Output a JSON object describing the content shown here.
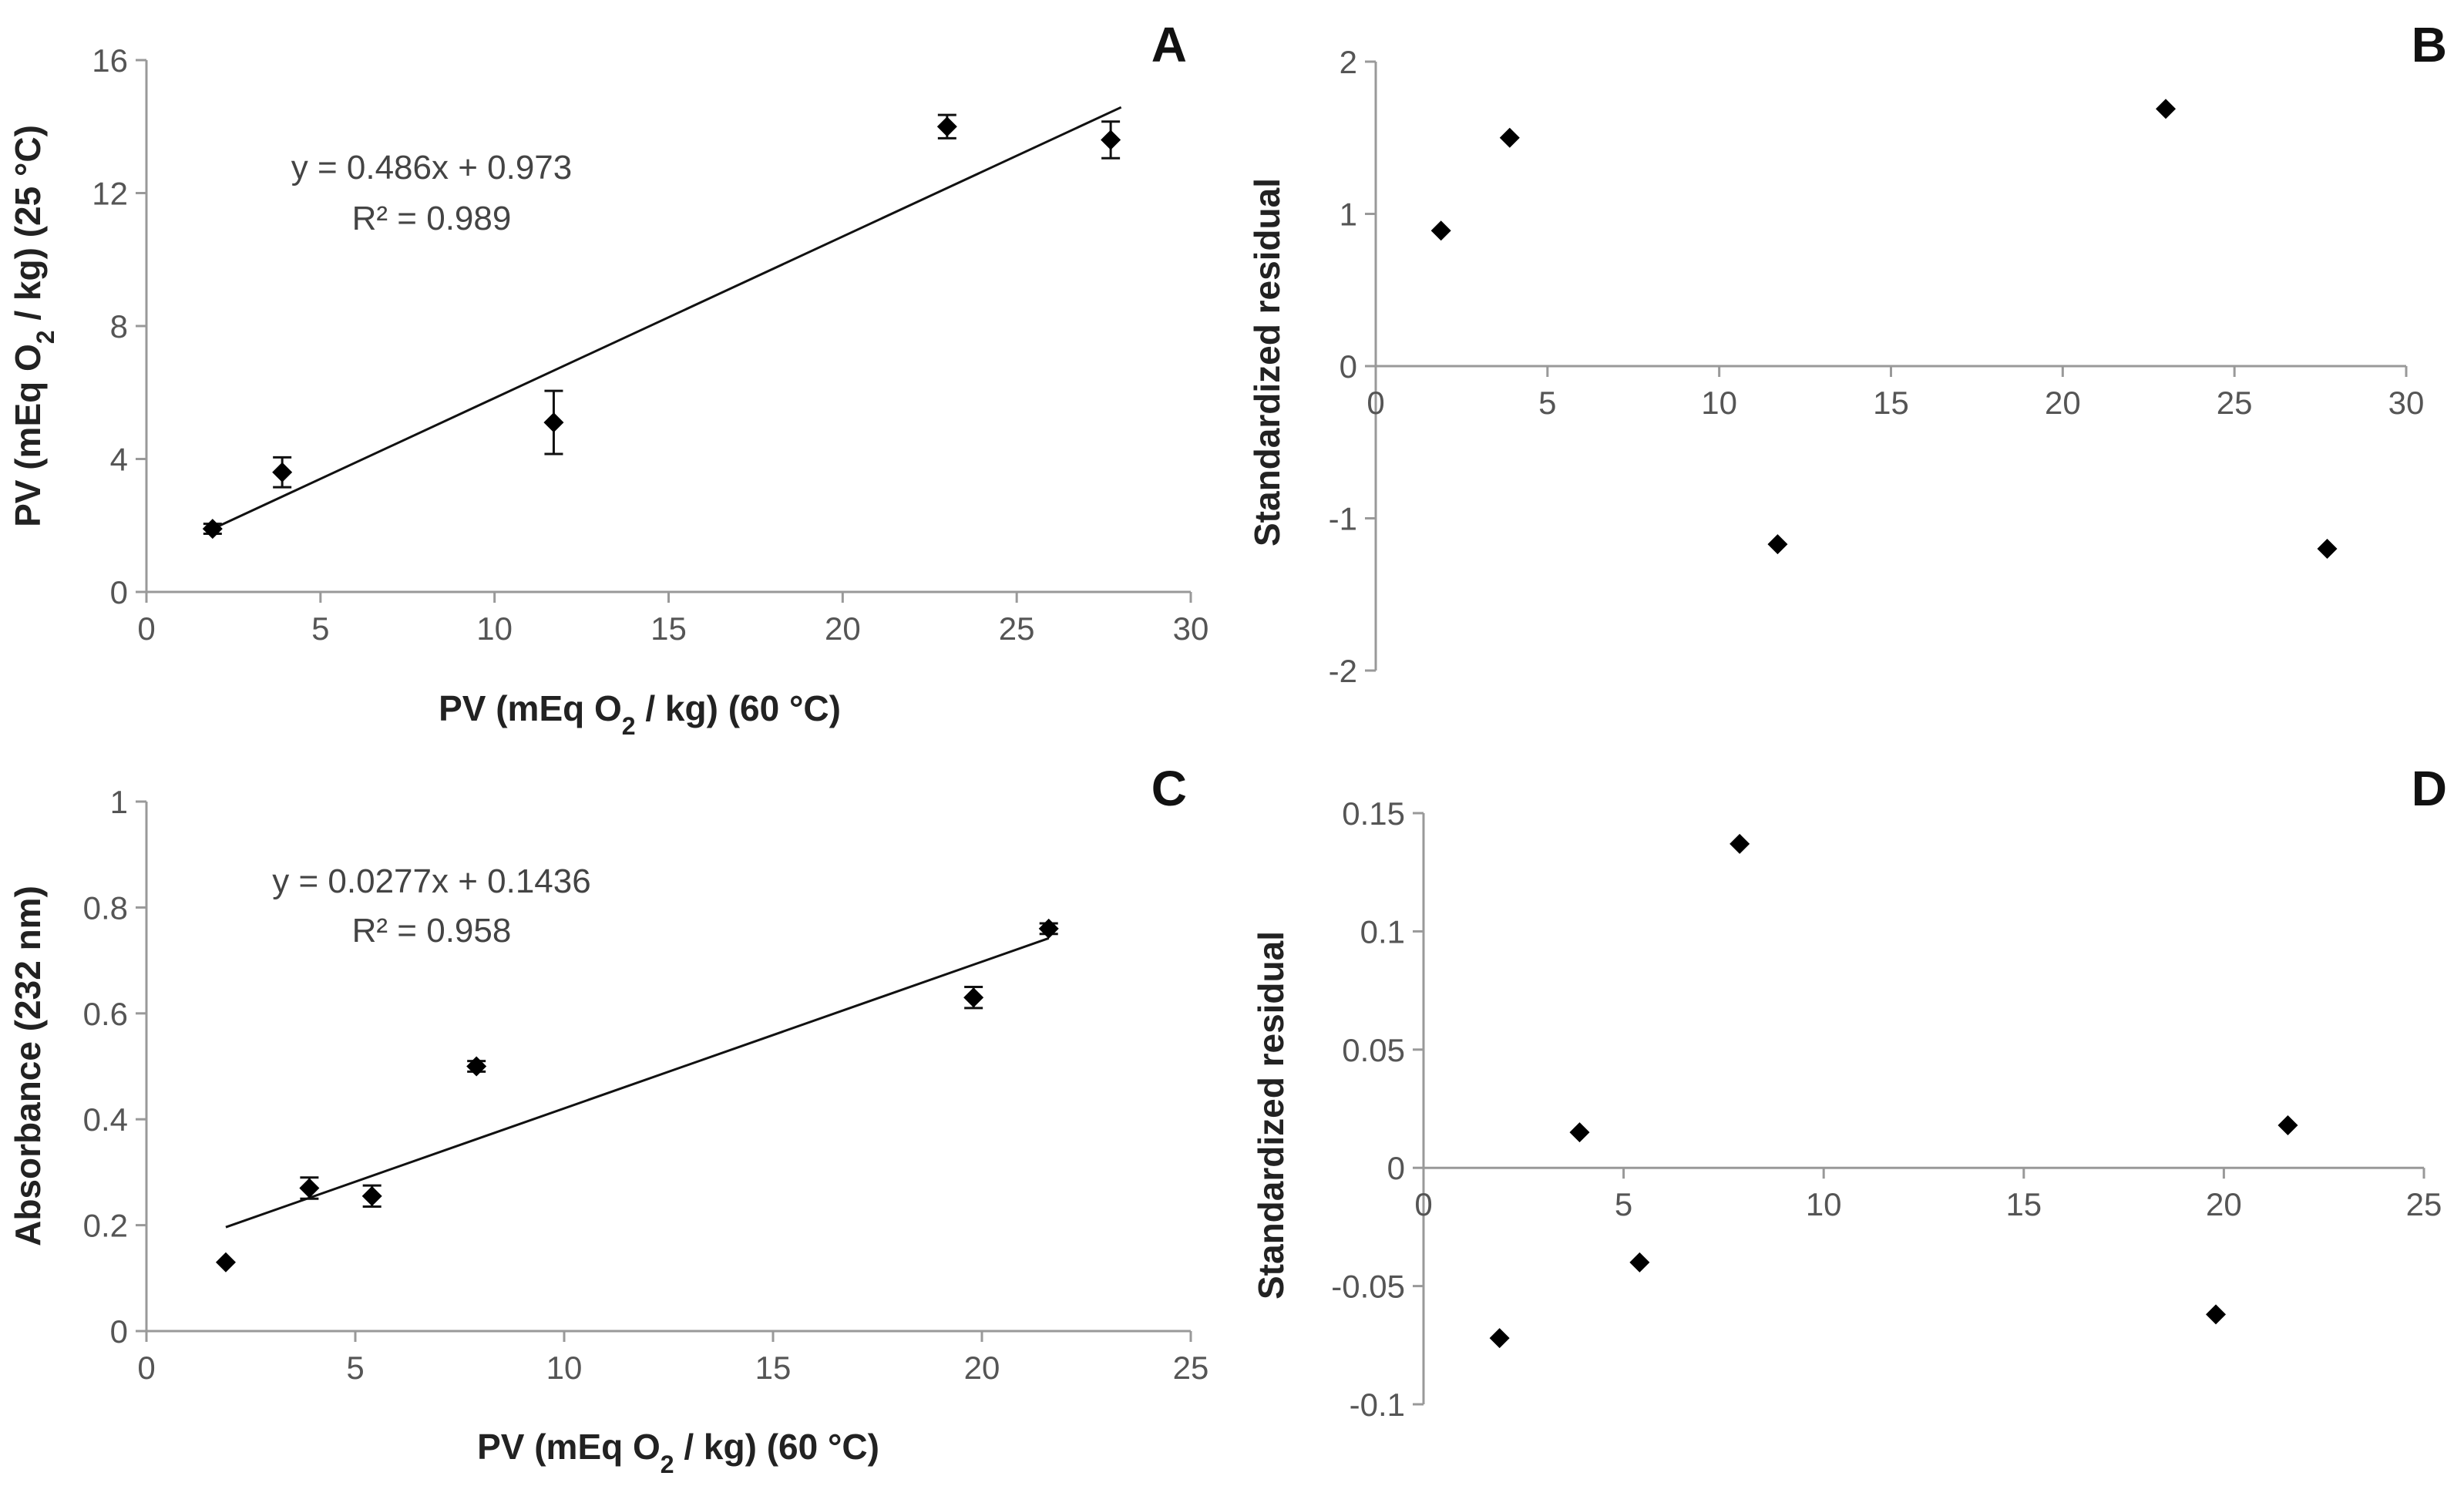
{
  "chart_data": [
    {
      "panel": "A",
      "type": "scatter",
      "xlabel": "PV  (mEq O₂ / kg) (60 °C)",
      "ylabel": "PV  (mEq O₂ / kg) (25 °C)",
      "xlim": [
        0,
        30
      ],
      "ylim": [
        0,
        16
      ],
      "xticks": [
        0,
        5,
        10,
        15,
        20,
        25,
        30
      ],
      "yticks": [
        0,
        4,
        8,
        12,
        16
      ],
      "points": [
        {
          "x": 1.9,
          "y": 1.9,
          "err": 0.15
        },
        {
          "x": 3.9,
          "y": 3.6,
          "err": 0.45
        },
        {
          "x": 11.7,
          "y": 5.1,
          "err": 0.95
        },
        {
          "x": 23.0,
          "y": 14.0,
          "err": 0.35
        },
        {
          "x": 27.7,
          "y": 13.6,
          "err": 0.55
        }
      ],
      "trendline": {
        "slope": 0.486,
        "intercept": 0.973,
        "x_range": [
          1.9,
          28.0
        ]
      },
      "equation": "y = 0.486x + 0.973",
      "r2": "R² = 0.989"
    },
    {
      "panel": "B",
      "type": "scatter",
      "xlabel": "",
      "ylabel": "Standardized residual",
      "xlim": [
        0,
        30
      ],
      "ylim": [
        -2,
        2
      ],
      "xticks": [
        0,
        5,
        10,
        15,
        20,
        25,
        30
      ],
      "yticks": [
        -2,
        -1,
        0,
        1,
        2
      ],
      "points": [
        {
          "x": 1.9,
          "y": 0.89
        },
        {
          "x": 3.9,
          "y": 1.5
        },
        {
          "x": 11.7,
          "y": -1.17
        },
        {
          "x": 23.0,
          "y": 1.69
        },
        {
          "x": 27.7,
          "y": -1.2
        }
      ]
    },
    {
      "panel": "C",
      "type": "scatter",
      "xlabel": "PV  (mEq O₂ / kg) (60 °C)",
      "ylabel": "Absorbance (232 nm)",
      "xlim": [
        0,
        25
      ],
      "ylim": [
        0,
        1
      ],
      "xticks": [
        0,
        5,
        10,
        15,
        20,
        25
      ],
      "yticks": [
        0,
        0.2,
        0.4,
        0.6,
        0.8,
        1
      ],
      "points": [
        {
          "x": 1.9,
          "y": 0.13,
          "err": 0.0
        },
        {
          "x": 3.9,
          "y": 0.27,
          "err": 0.02
        },
        {
          "x": 5.4,
          "y": 0.255,
          "err": 0.02
        },
        {
          "x": 7.9,
          "y": 0.5,
          "err": 0.01
        },
        {
          "x": 19.8,
          "y": 0.63,
          "err": 0.02
        },
        {
          "x": 21.6,
          "y": 0.76,
          "err": 0.01
        }
      ],
      "trendline": {
        "slope": 0.0277,
        "intercept": 0.1436,
        "x_range": [
          1.9,
          21.6
        ]
      },
      "equation": "y = 0.0277x + 0.1436",
      "r2": "R² = 0.958"
    },
    {
      "panel": "D",
      "type": "scatter",
      "xlabel": "",
      "ylabel": "Standardized residual",
      "xlim": [
        0,
        25
      ],
      "ylim": [
        -0.1,
        0.15
      ],
      "xticks": [
        0,
        5,
        10,
        15,
        20,
        25
      ],
      "yticks": [
        -0.1,
        -0.05,
        0,
        0.05,
        0.1,
        0.15
      ],
      "points": [
        {
          "x": 1.9,
          "y": -0.072
        },
        {
          "x": 3.9,
          "y": 0.015
        },
        {
          "x": 5.4,
          "y": -0.04
        },
        {
          "x": 7.9,
          "y": 0.137
        },
        {
          "x": 19.8,
          "y": -0.062
        },
        {
          "x": 21.6,
          "y": 0.018
        }
      ]
    }
  ]
}
